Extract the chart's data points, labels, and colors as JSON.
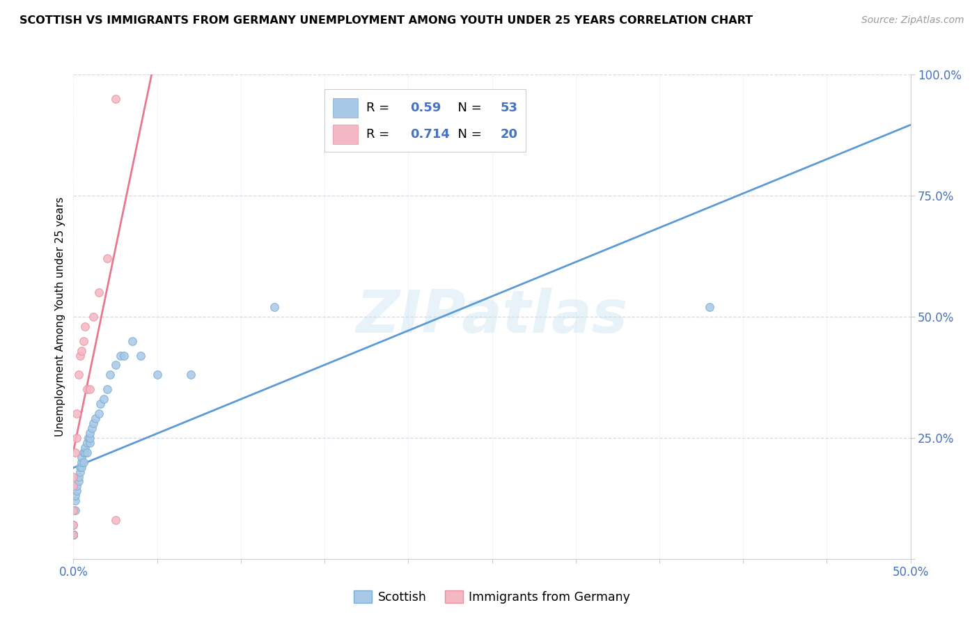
{
  "title": "SCOTTISH VS IMMIGRANTS FROM GERMANY UNEMPLOYMENT AMONG YOUTH UNDER 25 YEARS CORRELATION CHART",
  "source": "Source: ZipAtlas.com",
  "ylabel": "Unemployment Among Youth under 25 years",
  "xlim": [
    0.0,
    0.5
  ],
  "ylim": [
    0.0,
    1.0
  ],
  "scottish_color": "#a8c8e8",
  "scottish_edge_color": "#7aadd0",
  "german_color": "#f4b8c4",
  "german_edge_color": "#e890a0",
  "scottish_line_color": "#5b9bd5",
  "german_line_color": "#e87890",
  "scottish_R": 0.59,
  "scottish_N": 53,
  "german_R": 0.714,
  "german_N": 20,
  "watermark": "ZIPatlas",
  "label_color": "#4472c4",
  "scottish_x": [
    0.0,
    0.0,
    0.0,
    0.0,
    0.0,
    0.0,
    0.0,
    0.0,
    0.0,
    0.0,
    0.0,
    0.0,
    0.0,
    0.0,
    0.001,
    0.001,
    0.001,
    0.002,
    0.002,
    0.003,
    0.003,
    0.004,
    0.004,
    0.005,
    0.005,
    0.005,
    0.006,
    0.006,
    0.007,
    0.007,
    0.008,
    0.008,
    0.009,
    0.01,
    0.01,
    0.01,
    0.011,
    0.012,
    0.013,
    0.015,
    0.016,
    0.018,
    0.02,
    0.022,
    0.025,
    0.028,
    0.03,
    0.035,
    0.04,
    0.05,
    0.07,
    0.12,
    0.38
  ],
  "scottish_y": [
    0.05,
    0.05,
    0.05,
    0.05,
    0.05,
    0.05,
    0.05,
    0.05,
    0.05,
    0.05,
    0.05,
    0.05,
    0.05,
    0.07,
    0.1,
    0.12,
    0.13,
    0.14,
    0.15,
    0.16,
    0.17,
    0.18,
    0.19,
    0.19,
    0.2,
    0.21,
    0.2,
    0.22,
    0.22,
    0.23,
    0.22,
    0.24,
    0.25,
    0.24,
    0.25,
    0.26,
    0.27,
    0.28,
    0.29,
    0.3,
    0.32,
    0.33,
    0.35,
    0.38,
    0.4,
    0.42,
    0.42,
    0.45,
    0.42,
    0.38,
    0.38,
    0.52,
    0.52
  ],
  "german_x": [
    0.0,
    0.0,
    0.0,
    0.0,
    0.0,
    0.001,
    0.002,
    0.002,
    0.003,
    0.004,
    0.005,
    0.006,
    0.007,
    0.008,
    0.01,
    0.012,
    0.015,
    0.02,
    0.025,
    0.025
  ],
  "german_y": [
    0.05,
    0.07,
    0.1,
    0.15,
    0.17,
    0.22,
    0.25,
    0.3,
    0.38,
    0.42,
    0.43,
    0.45,
    0.48,
    0.35,
    0.35,
    0.5,
    0.55,
    0.62,
    0.95,
    0.08
  ]
}
